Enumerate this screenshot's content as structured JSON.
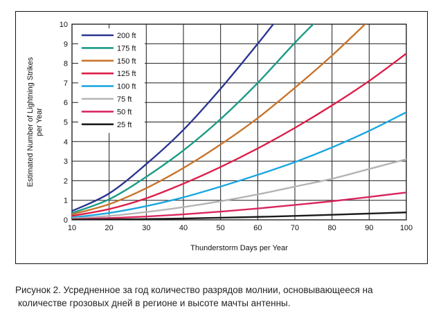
{
  "chart_data": {
    "type": "line",
    "title": "",
    "xlabel": "Thunderstorm Days per Year",
    "ylabel": "Estimated Number of Lightning Strikes per Year",
    "xlim": [
      10,
      100
    ],
    "ylim": [
      0,
      10
    ],
    "xticks": [
      10,
      20,
      30,
      40,
      50,
      60,
      70,
      80,
      90,
      100
    ],
    "yticks": [
      0,
      1,
      2,
      3,
      4,
      5,
      6,
      7,
      8,
      9,
      10
    ],
    "grid": true,
    "legend_position": "top-left",
    "series": [
      {
        "name": "200 ft",
        "color": "#2a3590",
        "x": [
          10,
          20,
          30,
          40,
          50,
          60,
          65
        ],
        "y": [
          0.45,
          1.35,
          2.85,
          4.6,
          6.7,
          9.0,
          10.2
        ]
      },
      {
        "name": "175 ft",
        "color": "#1a9a86",
        "x": [
          10,
          20,
          30,
          40,
          50,
          60,
          70,
          76
        ],
        "y": [
          0.35,
          1.05,
          2.2,
          3.55,
          5.15,
          7.0,
          9.05,
          10.2
        ]
      },
      {
        "name": "150 ft",
        "color": "#c8742a",
        "x": [
          10,
          20,
          30,
          40,
          50,
          60,
          70,
          80,
          90
        ],
        "y": [
          0.28,
          0.8,
          1.62,
          2.65,
          3.85,
          5.2,
          6.75,
          8.4,
          10.2
        ]
      },
      {
        "name": "125 ft",
        "color": "#dd1e48",
        "x": [
          10,
          20,
          30,
          40,
          50,
          60,
          70,
          80,
          90,
          100
        ],
        "y": [
          0.2,
          0.55,
          1.1,
          1.85,
          2.7,
          3.65,
          4.7,
          5.85,
          7.1,
          8.5
        ]
      },
      {
        "name": "100 ft",
        "color": "#1aa6e0",
        "x": [
          10,
          20,
          30,
          40,
          50,
          60,
          70,
          80,
          90,
          100
        ],
        "y": [
          0.12,
          0.35,
          0.7,
          1.15,
          1.7,
          2.3,
          2.95,
          3.7,
          4.55,
          5.5
        ]
      },
      {
        "name": "75 ft",
        "color": "#b4b4b4",
        "x": [
          10,
          20,
          30,
          40,
          50,
          60,
          70,
          80,
          90,
          100
        ],
        "y": [
          0.07,
          0.2,
          0.4,
          0.65,
          0.95,
          1.3,
          1.7,
          2.1,
          2.6,
          3.1
        ]
      },
      {
        "name": "50 ft",
        "color": "#d9265e",
        "x": [
          10,
          20,
          30,
          40,
          50,
          60,
          70,
          80,
          90,
          100
        ],
        "y": [
          0.03,
          0.09,
          0.17,
          0.28,
          0.42,
          0.58,
          0.76,
          0.95,
          1.17,
          1.4
        ]
      },
      {
        "name": "25 ft",
        "color": "#1a1a1a",
        "x": [
          10,
          20,
          30,
          40,
          50,
          60,
          70,
          80,
          90,
          100
        ],
        "y": [
          0.01,
          0.02,
          0.04,
          0.07,
          0.11,
          0.15,
          0.2,
          0.26,
          0.32,
          0.38
        ]
      }
    ]
  },
  "caption": {
    "line1": "Рисунок 2. Усредненное за год количество разрядов молнии, основывающееся на",
    "line2": "количестве грозовых дней в регионе и высоте мачты антенны."
  }
}
